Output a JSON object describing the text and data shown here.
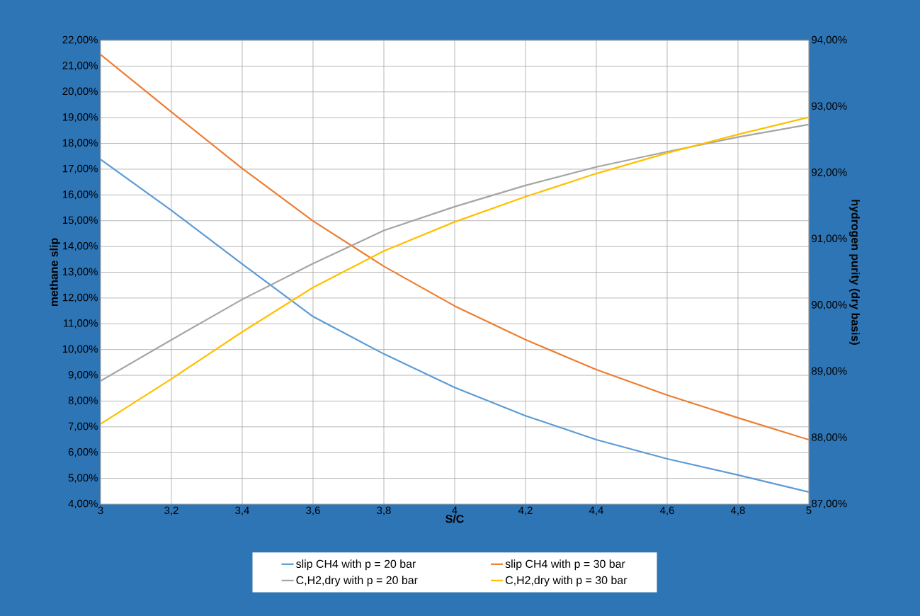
{
  "chart_data": {
    "type": "line",
    "xlabel": "S/C",
    "ylabel": "methane slip",
    "y2label": "hydrogen purity (dry basis)",
    "x": [
      3,
      3.2,
      3.4,
      3.6,
      3.8,
      4,
      4.2,
      4.4,
      4.6,
      4.8,
      5
    ],
    "series": [
      {
        "name": "slip CH4 with p = 20 bar",
        "color": "#5b9bd5",
        "values": [
          17.38,
          15.4,
          13.32,
          11.28,
          9.83,
          8.53,
          7.43,
          6.5,
          5.76,
          5.13,
          4.47
        ]
      },
      {
        "name": "slip CH4 with p = 30 bar",
        "color": "#ed7d31",
        "values": [
          21.45,
          19.22,
          17.03,
          14.99,
          13.23,
          11.69,
          10.38,
          9.22,
          8.23,
          7.35,
          6.5
        ]
      },
      {
        "name": "C,H2,dry with p = 20 bar",
        "color": "#a5a5a5",
        "axis": "y2",
        "values": [
          88.86,
          89.48,
          90.09,
          90.63,
          91.13,
          91.49,
          91.81,
          92.09,
          92.32,
          92.54,
          92.73
        ]
      },
      {
        "name": "C,H2,dry with p = 30 bar",
        "color": "#ffc000",
        "axis": "y2",
        "values": [
          88.21,
          88.89,
          89.6,
          90.27,
          90.82,
          91.26,
          91.64,
          91.99,
          92.3,
          92.58,
          92.84
        ]
      }
    ],
    "xlim": [
      3,
      5
    ],
    "xticks": [
      3,
      {
        "value": 3.2,
        "label": "3,2"
      },
      {
        "value": 3.4,
        "label": "3,4"
      },
      {
        "value": 3.6,
        "label": "3,6"
      },
      {
        "value": 3.8,
        "label": "3,8"
      },
      4,
      {
        "value": 4.2,
        "label": "4,2"
      },
      {
        "value": 4.4,
        "label": "4,4"
      },
      {
        "value": 4.6,
        "label": "4,6"
      },
      {
        "value": 4.8,
        "label": "4,8"
      },
      5
    ],
    "ylim": [
      4,
      22
    ],
    "yticks": [
      {
        "value": 4,
        "label": "4,00%"
      },
      {
        "value": 5,
        "label": "5,00%"
      },
      {
        "value": 6,
        "label": "6,00%"
      },
      {
        "value": 7,
        "label": "7,00%"
      },
      {
        "value": 8,
        "label": "8,00%"
      },
      {
        "value": 9,
        "label": "9,00%"
      },
      {
        "value": 10,
        "label": "10,00%"
      },
      {
        "value": 11,
        "label": "11,00%"
      },
      {
        "value": 12,
        "label": "12,00%"
      },
      {
        "value": 13,
        "label": "13,00%"
      },
      {
        "value": 14,
        "label": "14,00%"
      },
      {
        "value": 15,
        "label": "15,00%"
      },
      {
        "value": 16,
        "label": "16,00%"
      },
      {
        "value": 17,
        "label": "17,00%"
      },
      {
        "value": 18,
        "label": "18,00%"
      },
      {
        "value": 19,
        "label": "19,00%"
      },
      {
        "value": 20,
        "label": "20,00%"
      },
      {
        "value": 21,
        "label": "21,00%"
      },
      {
        "value": 22,
        "label": "22,00%"
      }
    ],
    "y2lim": [
      87,
      94
    ],
    "y2ticks": [
      {
        "value": 87,
        "label": "87,00%"
      },
      {
        "value": 88,
        "label": "88,00%"
      },
      {
        "value": 89,
        "label": "89,00%"
      },
      {
        "value": 90,
        "label": "90,00%"
      },
      {
        "value": 91,
        "label": "91,00%"
      },
      {
        "value": 92,
        "label": "92,00%"
      },
      {
        "value": 93,
        "label": "93,00%"
      },
      {
        "value": 94,
        "label": "94,00%"
      }
    ],
    "grid": true,
    "legend": "bottom",
    "marker": "none",
    "line_style": "solid"
  }
}
